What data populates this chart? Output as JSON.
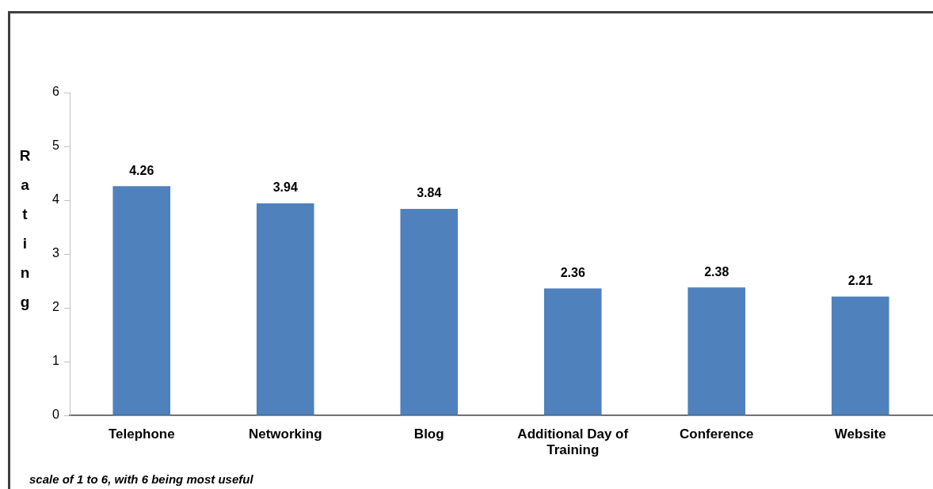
{
  "chart_data": {
    "type": "bar",
    "ylabel": "Rating",
    "categories": [
      "Telephone",
      "Networking",
      "Blog",
      "Additional Day of Training",
      "Conference",
      "Website"
    ],
    "values": [
      4.26,
      3.94,
      3.84,
      2.36,
      2.38,
      2.21
    ],
    "color": "#4f81bd",
    "ylim": [
      0,
      6
    ],
    "yticks": [
      0,
      1,
      2,
      3,
      4,
      5,
      6
    ],
    "grid": false,
    "data_labels": true,
    "annotations": [
      "scale of 1 to 6, with 6 being most useful"
    ]
  }
}
